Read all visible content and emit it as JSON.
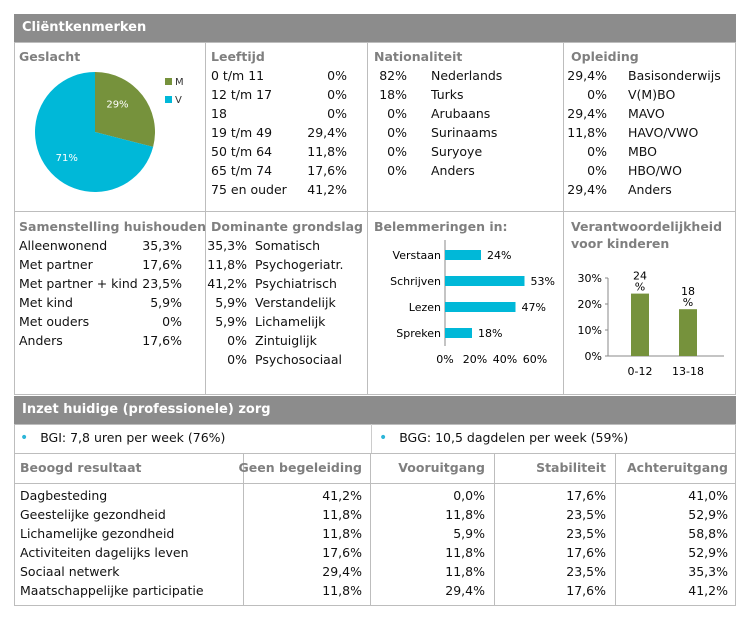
{
  "header": {
    "title": "Cliëntkenmerken"
  },
  "geslacht": {
    "title": "Geslacht",
    "legend": [
      {
        "label": "M",
        "color": "#76923c"
      },
      {
        "label": "V",
        "color": "#00b8d8"
      }
    ],
    "slices": [
      {
        "label": "M",
        "value": 29,
        "text": "29%"
      },
      {
        "label": "V",
        "value": 71,
        "text": "71%"
      }
    ]
  },
  "leeftijd": {
    "title": "Leeftijd",
    "rows": [
      {
        "label": "0 t/m 11",
        "value": "0%"
      },
      {
        "label": "12 t/m 17",
        "value": "0%"
      },
      {
        "label": "18",
        "value": "0%"
      },
      {
        "label": "19 t/m 49",
        "value": "29,4%"
      },
      {
        "label": "50 t/m 64",
        "value": "11,8%"
      },
      {
        "label": "65 t/m 74",
        "value": "17,6%"
      },
      {
        "label": "75 en ouder",
        "value": "41,2%"
      }
    ]
  },
  "nationaliteit": {
    "title": "Nationaliteit",
    "rows": [
      {
        "value": "82%",
        "label": "Nederlands"
      },
      {
        "value": "18%",
        "label": "Turks"
      },
      {
        "value": "0%",
        "label": "Arubaans"
      },
      {
        "value": "0%",
        "label": "Surinaams"
      },
      {
        "value": "0%",
        "label": "Suryoye"
      },
      {
        "value": "0%",
        "label": "Anders"
      }
    ]
  },
  "opleiding": {
    "title": "Opleiding",
    "rows": [
      {
        "value": "29,4%",
        "label": "Basisonderwijs"
      },
      {
        "value": "0%",
        "label": "V(M)BO"
      },
      {
        "value": "29,4%",
        "label": "MAVO"
      },
      {
        "value": "11,8%",
        "label": "HAVO/VWO"
      },
      {
        "value": "0%",
        "label": "MBO"
      },
      {
        "value": "0%",
        "label": "HBO/WO"
      },
      {
        "value": "29,4%",
        "label": "Anders"
      }
    ]
  },
  "huishouden": {
    "title": "Samenstelling huishouden",
    "rows": [
      {
        "label": "Alleenwonend",
        "value": "35,3%"
      },
      {
        "label": "Met partner",
        "value": "17,6%"
      },
      {
        "label": "Met partner + kind",
        "value": "23,5%"
      },
      {
        "label": "Met kind",
        "value": "5,9%"
      },
      {
        "label": "Met ouders",
        "value": "0%"
      },
      {
        "label": "Anders",
        "value": "17,6%"
      }
    ]
  },
  "grondslag": {
    "title": "Dominante grondslag",
    "rows": [
      {
        "value": "35,3%",
        "label": "Somatisch"
      },
      {
        "value": "11,8%",
        "label": "Psychogeriatr."
      },
      {
        "value": "41,2%",
        "label": "Psychiatrisch"
      },
      {
        "value": "5,9%",
        "label": "Verstandelijk"
      },
      {
        "value": "5,9%",
        "label": "Lichamelijk"
      },
      {
        "value": "0%",
        "label": "Zintuiglijk"
      },
      {
        "value": "0%",
        "label": "Psychosociaal"
      }
    ]
  },
  "belemmeringen": {
    "title": "Belemmeringen in:"
  },
  "verantwoordelijkheid": {
    "title_line1": "Verantwoordelijkheid",
    "title_line2": "voor kinderen"
  },
  "chart_data": [
    {
      "type": "pie",
      "labels": [
        "M",
        "V"
      ],
      "values": [
        29,
        71
      ],
      "colors": [
        "#76923c",
        "#00b8d8"
      ],
      "legend": "right"
    },
    {
      "type": "bar",
      "orientation": "horizontal",
      "categories": [
        "Verstaan",
        "Schrijven",
        "Lezen",
        "Spreken"
      ],
      "values": [
        24,
        53,
        47,
        18
      ],
      "value_labels": [
        "24%",
        "53%",
        "47%",
        "18%"
      ],
      "xlim": [
        0,
        60
      ],
      "xticks": [
        "0%",
        "20%",
        "40%",
        "60%"
      ],
      "color": "#00b8d8"
    },
    {
      "type": "bar",
      "categories": [
        "0-12",
        "13-18"
      ],
      "values": [
        24,
        18
      ],
      "value_labels": [
        "24 %",
        "18 %"
      ],
      "ylim": [
        0,
        30
      ],
      "yticks": [
        "0%",
        "10%",
        "20%",
        "30%"
      ],
      "color": "#76923c"
    }
  ],
  "zorg": {
    "title": "Inzet huidige (professionele) zorg",
    "bgi": "BGI: 7,8 uren per week (76%)",
    "bgg": "BGG: 10,5 dagdelen per week (59%)"
  },
  "resultaat": {
    "headers": [
      "Beoogd resultaat",
      "Geen begeleiding",
      "Vooruitgang",
      "Stabiliteit",
      "Achteruitgang"
    ],
    "rows": [
      [
        "Dagbesteding",
        "41,2%",
        "0,0%",
        "17,6%",
        "41,0%"
      ],
      [
        "Geestelijke gezondheid",
        "11,8%",
        "11,8%",
        "23,5%",
        "52,9%"
      ],
      [
        "Lichamelijke gezondheid",
        "11,8%",
        "5,9%",
        "23,5%",
        "58,8%"
      ],
      [
        "Activiteiten dagelijks leven",
        "17,6%",
        "11,8%",
        "17,6%",
        "52,9%"
      ],
      [
        "Sociaal netwerk",
        "29,4%",
        "11,8%",
        "23,5%",
        "35,3%"
      ],
      [
        "Maatschappelijke participatie",
        "11,8%",
        "29,4%",
        "17,6%",
        "41,2%"
      ]
    ]
  }
}
